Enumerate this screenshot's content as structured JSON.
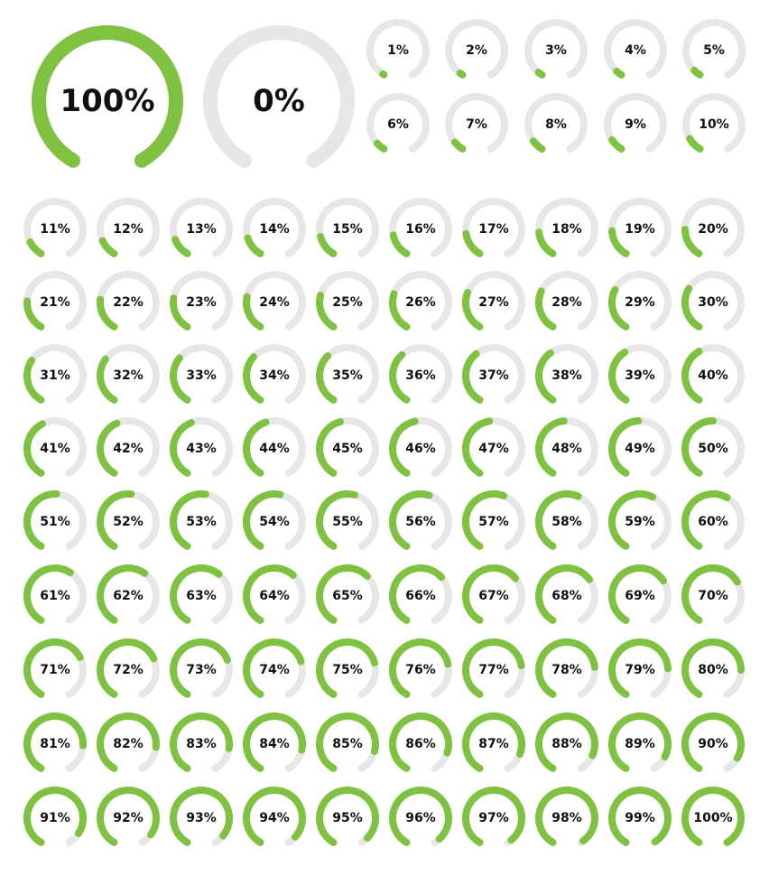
{
  "colors": {
    "fill": "#7fc241",
    "track": "#e7e7e7",
    "text": "#111111",
    "background": "#ffffff"
  },
  "large_gauges": [
    {
      "value": 100,
      "label": "100%"
    },
    {
      "value": 0,
      "label": "0%"
    }
  ],
  "small_gauges": [
    {
      "value": 1,
      "label": "1%"
    },
    {
      "value": 2,
      "label": "2%"
    },
    {
      "value": 3,
      "label": "3%"
    },
    {
      "value": 4,
      "label": "4%"
    },
    {
      "value": 5,
      "label": "5%"
    },
    {
      "value": 6,
      "label": "6%"
    },
    {
      "value": 7,
      "label": "7%"
    },
    {
      "value": 8,
      "label": "8%"
    },
    {
      "value": 9,
      "label": "9%"
    },
    {
      "value": 10,
      "label": "10%"
    },
    {
      "value": 11,
      "label": "11%"
    },
    {
      "value": 12,
      "label": "12%"
    },
    {
      "value": 13,
      "label": "13%"
    },
    {
      "value": 14,
      "label": "14%"
    },
    {
      "value": 15,
      "label": "15%"
    },
    {
      "value": 16,
      "label": "16%"
    },
    {
      "value": 17,
      "label": "17%"
    },
    {
      "value": 18,
      "label": "18%"
    },
    {
      "value": 19,
      "label": "19%"
    },
    {
      "value": 20,
      "label": "20%"
    },
    {
      "value": 21,
      "label": "21%"
    },
    {
      "value": 22,
      "label": "22%"
    },
    {
      "value": 23,
      "label": "23%"
    },
    {
      "value": 24,
      "label": "24%"
    },
    {
      "value": 25,
      "label": "25%"
    },
    {
      "value": 26,
      "label": "26%"
    },
    {
      "value": 27,
      "label": "27%"
    },
    {
      "value": 28,
      "label": "28%"
    },
    {
      "value": 29,
      "label": "29%"
    },
    {
      "value": 30,
      "label": "30%"
    },
    {
      "value": 31,
      "label": "31%"
    },
    {
      "value": 32,
      "label": "32%"
    },
    {
      "value": 33,
      "label": "33%"
    },
    {
      "value": 34,
      "label": "34%"
    },
    {
      "value": 35,
      "label": "35%"
    },
    {
      "value": 36,
      "label": "36%"
    },
    {
      "value": 37,
      "label": "37%"
    },
    {
      "value": 38,
      "label": "38%"
    },
    {
      "value": 39,
      "label": "39%"
    },
    {
      "value": 40,
      "label": "40%"
    },
    {
      "value": 41,
      "label": "41%"
    },
    {
      "value": 42,
      "label": "42%"
    },
    {
      "value": 43,
      "label": "43%"
    },
    {
      "value": 44,
      "label": "44%"
    },
    {
      "value": 45,
      "label": "45%"
    },
    {
      "value": 46,
      "label": "46%"
    },
    {
      "value": 47,
      "label": "47%"
    },
    {
      "value": 48,
      "label": "48%"
    },
    {
      "value": 49,
      "label": "49%"
    },
    {
      "value": 50,
      "label": "50%"
    },
    {
      "value": 51,
      "label": "51%"
    },
    {
      "value": 52,
      "label": "52%"
    },
    {
      "value": 53,
      "label": "53%"
    },
    {
      "value": 54,
      "label": "54%"
    },
    {
      "value": 55,
      "label": "55%"
    },
    {
      "value": 56,
      "label": "56%"
    },
    {
      "value": 57,
      "label": "57%"
    },
    {
      "value": 58,
      "label": "58%"
    },
    {
      "value": 59,
      "label": "59%"
    },
    {
      "value": 60,
      "label": "60%"
    },
    {
      "value": 61,
      "label": "61%"
    },
    {
      "value": 62,
      "label": "62%"
    },
    {
      "value": 63,
      "label": "63%"
    },
    {
      "value": 64,
      "label": "64%"
    },
    {
      "value": 65,
      "label": "65%"
    },
    {
      "value": 66,
      "label": "66%"
    },
    {
      "value": 67,
      "label": "67%"
    },
    {
      "value": 68,
      "label": "68%"
    },
    {
      "value": 69,
      "label": "69%"
    },
    {
      "value": 70,
      "label": "70%"
    },
    {
      "value": 71,
      "label": "71%"
    },
    {
      "value": 72,
      "label": "72%"
    },
    {
      "value": 73,
      "label": "73%"
    },
    {
      "value": 74,
      "label": "74%"
    },
    {
      "value": 75,
      "label": "75%"
    },
    {
      "value": 76,
      "label": "76%"
    },
    {
      "value": 77,
      "label": "77%"
    },
    {
      "value": 78,
      "label": "78%"
    },
    {
      "value": 79,
      "label": "79%"
    },
    {
      "value": 80,
      "label": "80%"
    },
    {
      "value": 81,
      "label": "81%"
    },
    {
      "value": 82,
      "label": "82%"
    },
    {
      "value": 83,
      "label": "83%"
    },
    {
      "value": 84,
      "label": "84%"
    },
    {
      "value": 85,
      "label": "85%"
    },
    {
      "value": 86,
      "label": "86%"
    },
    {
      "value": 87,
      "label": "87%"
    },
    {
      "value": 88,
      "label": "88%"
    },
    {
      "value": 89,
      "label": "89%"
    },
    {
      "value": 90,
      "label": "90%"
    },
    {
      "value": 91,
      "label": "91%"
    },
    {
      "value": 92,
      "label": "92%"
    },
    {
      "value": 93,
      "label": "93%"
    },
    {
      "value": 94,
      "label": "94%"
    },
    {
      "value": 95,
      "label": "95%"
    },
    {
      "value": 96,
      "label": "96%"
    },
    {
      "value": 97,
      "label": "97%"
    },
    {
      "value": 98,
      "label": "98%"
    },
    {
      "value": 99,
      "label": "99%"
    },
    {
      "value": 100,
      "label": "100%"
    }
  ]
}
